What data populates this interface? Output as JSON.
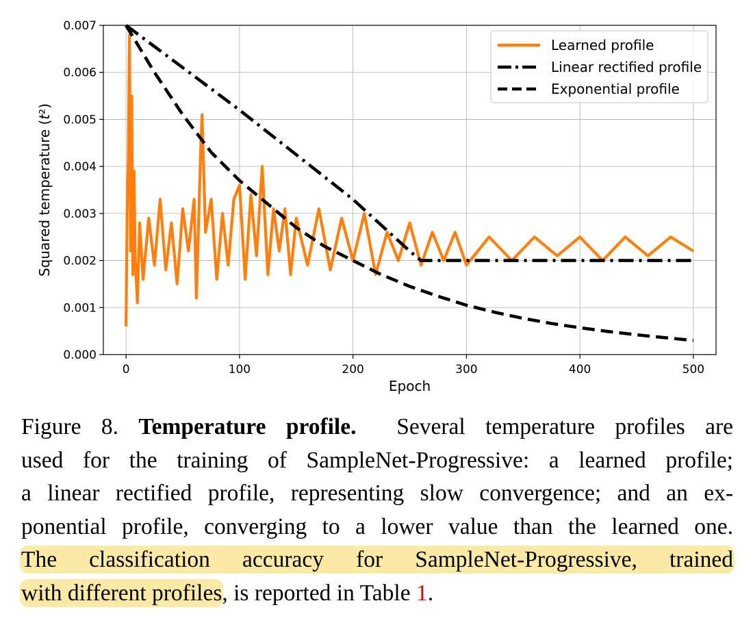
{
  "chart_data": {
    "type": "line",
    "xlabel": "Epoch",
    "ylabel": "Squared temperature (t²)",
    "xlim": [
      -20,
      520
    ],
    "ylim": [
      0,
      0.007
    ],
    "xticks": [
      0,
      100,
      200,
      300,
      400,
      500
    ],
    "yticks": [
      0.0,
      0.001,
      0.002,
      0.003,
      0.004,
      0.005,
      0.006,
      0.007
    ],
    "ytick_labels": [
      "0.000",
      "0.001",
      "0.002",
      "0.003",
      "0.004",
      "0.005",
      "0.006",
      "0.007"
    ],
    "grid": true,
    "legend_position": "top-right",
    "series": [
      {
        "name": "Learned profile",
        "color": "#ff7f0e",
        "style": "solid",
        "x": [
          0,
          1,
          2,
          3,
          4,
          5,
          6,
          7,
          8,
          10,
          12,
          15,
          20,
          25,
          30,
          35,
          40,
          45,
          50,
          55,
          60,
          62,
          65,
          66,
          67,
          70,
          75,
          80,
          85,
          90,
          95,
          100,
          105,
          110,
          115,
          120,
          125,
          130,
          135,
          140,
          145,
          150,
          160,
          170,
          180,
          190,
          200,
          210,
          220,
          230,
          240,
          250,
          260,
          270,
          280,
          290,
          300,
          320,
          340,
          360,
          380,
          400,
          420,
          440,
          460,
          480,
          500
        ],
        "values": [
          0.0006,
          0.0031,
          0.0042,
          0.0068,
          0.0022,
          0.0055,
          0.0017,
          0.0039,
          0.0021,
          0.0011,
          0.0028,
          0.0016,
          0.0029,
          0.0019,
          0.0033,
          0.0018,
          0.0028,
          0.0015,
          0.0031,
          0.0022,
          0.0033,
          0.0012,
          0.0037,
          0.0045,
          0.0051,
          0.0026,
          0.0033,
          0.0016,
          0.003,
          0.0019,
          0.0033,
          0.0036,
          0.0016,
          0.0034,
          0.0021,
          0.004,
          0.0017,
          0.0031,
          0.0022,
          0.0031,
          0.0017,
          0.0029,
          0.0019,
          0.0031,
          0.0018,
          0.0029,
          0.002,
          0.003,
          0.0017,
          0.0026,
          0.002,
          0.0028,
          0.0019,
          0.0026,
          0.002,
          0.0026,
          0.0019,
          0.0025,
          0.002,
          0.0025,
          0.0021,
          0.0025,
          0.002,
          0.0025,
          0.0021,
          0.0025,
          0.0022
        ]
      },
      {
        "name": "Linear rectified profile",
        "color": "#000000",
        "style": "dashdot",
        "x": [
          0,
          50,
          100,
          150,
          200,
          250,
          260,
          300,
          350,
          400,
          450,
          500
        ],
        "values": [
          0.007,
          0.0061,
          0.0052,
          0.00425,
          0.0033,
          0.0022,
          0.002,
          0.002,
          0.002,
          0.002,
          0.002,
          0.002
        ]
      },
      {
        "name": "Exponential profile",
        "color": "#000000",
        "style": "dashed",
        "x": [
          0,
          25,
          50,
          75,
          100,
          125,
          150,
          175,
          200,
          225,
          250,
          275,
          300,
          325,
          350,
          375,
          400,
          425,
          450,
          475,
          500
        ],
        "values": [
          0.007,
          0.006,
          0.0051,
          0.0043,
          0.0037,
          0.0032,
          0.0027,
          0.0023,
          0.002,
          0.0017,
          0.00145,
          0.00124,
          0.00105,
          0.0009,
          0.00077,
          0.00066,
          0.00057,
          0.00049,
          0.00042,
          0.00036,
          0.0003
        ]
      }
    ]
  },
  "caption": {
    "line1_prefix": "Figure 8.",
    "line1_bold": "Temperature profile.",
    "line1_rest": "Several temperature profiles are",
    "line2": "used for the training of SampleNet-Progressive: a learned profile;",
    "line3": "a linear rectified profile, representing slow convergence; and an ex-",
    "line4": "ponential profile, converging to a lower value than the learned one.",
    "line5_hl": "The classification accuracy for SampleNet-Progressive, trained",
    "line6_hl": "with different profiles",
    "line6_rest": ", is reported in Table",
    "table_ref": "1",
    "line6_end": "."
  }
}
